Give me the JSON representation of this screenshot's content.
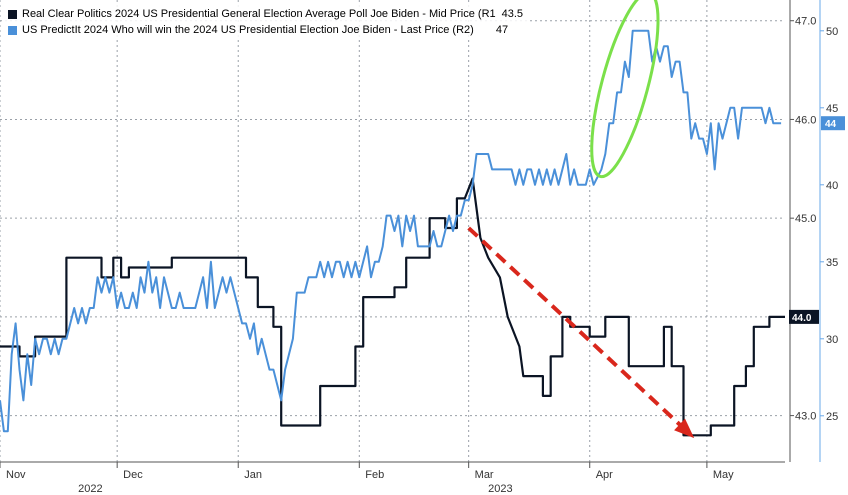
{
  "chart_data": {
    "type": "line",
    "legend": {
      "placement": "top-left",
      "entries": [
        {
          "label": "Real Clear Politics 2024 US Presidential General Election Average Poll Joe Biden - Mid Price (R1",
          "value": "43.5",
          "color": "#0b1424"
        },
        {
          "label": "US PredictIt 2024 Who will win the 2024 US Presidential Election Joe Biden - Last Price (R2)",
          "value": "47",
          "color": "#4a90d9"
        }
      ]
    },
    "x_axis": {
      "month_labels": [
        "Nov",
        "Dec",
        "Jan",
        "Feb",
        "Mar",
        "Apr",
        "May"
      ],
      "month_days": [
        0,
        30,
        61,
        92,
        120,
        151,
        181
      ],
      "year_labels": [
        {
          "label": "2022",
          "day": 20
        },
        {
          "label": "2023",
          "day": 125
        }
      ],
      "range_days": [
        0,
        201
      ]
    },
    "y_axis_r1": {
      "ticks": [
        43.0,
        44.0,
        45.0,
        46.0,
        47.0
      ],
      "tick_labels": [
        "43.0",
        "44.0",
        "45.0",
        "46.0",
        "47.0"
      ],
      "range": [
        42.53,
        47.21
      ]
    },
    "y_axis_r2": {
      "ticks": [
        25,
        30,
        35,
        40,
        45,
        50
      ],
      "tick_labels": [
        "25",
        "30",
        "35",
        "40",
        "45",
        "50"
      ],
      "range": [
        22,
        52
      ]
    },
    "grid": true,
    "series": [
      {
        "name": "Real Clear Politics 2024 US Presidential General Election Average Poll Joe Biden - Mid Price (R1",
        "axis": "r1",
        "color": "#0b1424",
        "last_value_label": "44.0",
        "points": [
          [
            0,
            43.7
          ],
          [
            5,
            43.7
          ],
          [
            5,
            43.6
          ],
          [
            9,
            43.6
          ],
          [
            9,
            43.8
          ],
          [
            17,
            43.8
          ],
          [
            17,
            44.6
          ],
          [
            26,
            44.6
          ],
          [
            26,
            44.4
          ],
          [
            29,
            44.4
          ],
          [
            29,
            44.6
          ],
          [
            31,
            44.6
          ],
          [
            31,
            44.4
          ],
          [
            33,
            44.4
          ],
          [
            33,
            44.5
          ],
          [
            44,
            44.5
          ],
          [
            44,
            44.6
          ],
          [
            46,
            44.6
          ],
          [
            46,
            44.6
          ],
          [
            63,
            44.6
          ],
          [
            63,
            44.4
          ],
          [
            66,
            44.4
          ],
          [
            66,
            44.1
          ],
          [
            70,
            44.1
          ],
          [
            70,
            43.9
          ],
          [
            72,
            43.9
          ],
          [
            72,
            42.9
          ],
          [
            82,
            42.9
          ],
          [
            82,
            43.3
          ],
          [
            89,
            43.3
          ],
          [
            89,
            43.3
          ],
          [
            91,
            43.3
          ],
          [
            91,
            43.7
          ],
          [
            93,
            43.7
          ],
          [
            93,
            44.2
          ],
          [
            101,
            44.2
          ],
          [
            101,
            44.3
          ],
          [
            104,
            44.3
          ],
          [
            104,
            44.6
          ],
          [
            110,
            44.6
          ],
          [
            110,
            45.0
          ],
          [
            114,
            45.0
          ],
          [
            114,
            44.9
          ],
          [
            117,
            44.9
          ],
          [
            117,
            45.2
          ],
          [
            119,
            45.2
          ],
          [
            121,
            45.4
          ],
          [
            123,
            44.8
          ],
          [
            125,
            44.6
          ],
          [
            128,
            44.4
          ],
          [
            130,
            44.0
          ],
          [
            133,
            43.7
          ],
          [
            134,
            43.4
          ],
          [
            139,
            43.4
          ],
          [
            139,
            43.2
          ],
          [
            141,
            43.2
          ],
          [
            141,
            43.6
          ],
          [
            144,
            43.6
          ],
          [
            144,
            44.0
          ],
          [
            146,
            44.0
          ],
          [
            146,
            43.9
          ],
          [
            151,
            43.9
          ],
          [
            151,
            43.8
          ],
          [
            155,
            43.8
          ],
          [
            155,
            44.0
          ],
          [
            161,
            44.0
          ],
          [
            161,
            43.5
          ],
          [
            170,
            43.5
          ],
          [
            170,
            43.9
          ],
          [
            172,
            43.9
          ],
          [
            172,
            43.5
          ],
          [
            175,
            43.5
          ],
          [
            175,
            42.8
          ],
          [
            182,
            42.8
          ],
          [
            182,
            42.9
          ],
          [
            184,
            42.9
          ],
          [
            184,
            42.9
          ],
          [
            188,
            42.9
          ],
          [
            188,
            43.3
          ],
          [
            191,
            43.3
          ],
          [
            191,
            43.5
          ],
          [
            193,
            43.5
          ],
          [
            193,
            43.9
          ],
          [
            197,
            43.9
          ],
          [
            197,
            44.0
          ],
          [
            201,
            44.0
          ]
        ]
      },
      {
        "name": "US PredictIt 2024 Who will win the 2024 US Presidential Election Joe Biden - Last Price (R2)",
        "axis": "r2",
        "color": "#4a90d9",
        "last_value_label": "44",
        "points": [
          [
            0,
            26
          ],
          [
            1,
            24
          ],
          [
            2,
            24
          ],
          [
            3,
            29
          ],
          [
            4,
            31
          ],
          [
            5,
            28
          ],
          [
            6,
            26
          ],
          [
            7,
            29
          ],
          [
            8,
            27
          ],
          [
            9,
            30
          ],
          [
            10,
            29
          ],
          [
            11,
            30
          ],
          [
            12,
            30
          ],
          [
            13,
            29
          ],
          [
            14,
            30
          ],
          [
            15,
            29
          ],
          [
            16,
            30
          ],
          [
            17,
            30
          ],
          [
            18,
            31
          ],
          [
            19,
            32
          ],
          [
            20,
            31
          ],
          [
            21,
            32
          ],
          [
            22,
            31
          ],
          [
            23,
            32
          ],
          [
            24,
            32
          ],
          [
            25,
            34
          ],
          [
            26,
            33
          ],
          [
            27,
            34
          ],
          [
            28,
            33
          ],
          [
            29,
            34
          ],
          [
            30,
            32
          ],
          [
            31,
            33
          ],
          [
            32,
            32
          ],
          [
            33,
            32
          ],
          [
            34,
            33
          ],
          [
            35,
            32
          ],
          [
            36,
            34
          ],
          [
            37,
            33
          ],
          [
            38,
            35
          ],
          [
            39,
            33
          ],
          [
            40,
            34
          ],
          [
            41,
            32
          ],
          [
            42,
            34
          ],
          [
            43,
            33
          ],
          [
            44,
            32
          ],
          [
            45,
            32
          ],
          [
            46,
            33
          ],
          [
            47,
            32
          ],
          [
            48,
            32
          ],
          [
            49,
            32
          ],
          [
            50,
            32
          ],
          [
            51,
            33
          ],
          [
            52,
            34
          ],
          [
            53,
            32
          ],
          [
            54,
            35
          ],
          [
            55,
            32
          ],
          [
            56,
            33
          ],
          [
            57,
            34
          ],
          [
            58,
            33
          ],
          [
            59,
            34
          ],
          [
            60,
            33
          ],
          [
            61,
            32
          ],
          [
            62,
            31
          ],
          [
            63,
            31
          ],
          [
            64,
            30
          ],
          [
            65,
            31
          ],
          [
            66,
            29
          ],
          [
            67,
            30
          ],
          [
            68,
            29
          ],
          [
            69,
            28
          ],
          [
            70,
            28
          ],
          [
            71,
            27
          ],
          [
            72,
            26
          ],
          [
            73,
            28
          ],
          [
            74,
            29
          ],
          [
            75,
            30
          ],
          [
            76,
            33
          ],
          [
            77,
            33
          ],
          [
            78,
            33
          ],
          [
            79,
            34
          ],
          [
            80,
            34
          ],
          [
            81,
            34
          ],
          [
            82,
            35
          ],
          [
            83,
            34
          ],
          [
            84,
            35
          ],
          [
            85,
            34
          ],
          [
            86,
            35
          ],
          [
            87,
            35
          ],
          [
            88,
            34
          ],
          [
            89,
            35
          ],
          [
            90,
            34
          ],
          [
            91,
            35
          ],
          [
            92,
            34
          ],
          [
            93,
            35
          ],
          [
            94,
            36
          ],
          [
            95,
            34
          ],
          [
            96,
            35
          ],
          [
            97,
            35
          ],
          [
            98,
            36
          ],
          [
            99,
            38
          ],
          [
            100,
            38
          ],
          [
            101,
            37
          ],
          [
            102,
            38
          ],
          [
            103,
            36
          ],
          [
            104,
            38
          ],
          [
            105,
            37
          ],
          [
            106,
            38
          ],
          [
            107,
            36
          ],
          [
            108,
            36
          ],
          [
            109,
            36
          ],
          [
            110,
            36
          ],
          [
            111,
            37
          ],
          [
            112,
            36
          ],
          [
            113,
            36
          ],
          [
            114,
            37
          ],
          [
            115,
            38
          ],
          [
            116,
            37
          ],
          [
            117,
            38
          ],
          [
            118,
            38
          ],
          [
            119,
            39
          ],
          [
            120,
            39
          ],
          [
            121,
            40
          ],
          [
            122,
            42
          ],
          [
            125,
            42
          ],
          [
            126,
            41
          ],
          [
            131,
            41
          ],
          [
            132,
            40
          ],
          [
            133,
            41
          ],
          [
            134,
            40
          ],
          [
            135,
            41
          ],
          [
            136,
            41
          ],
          [
            137,
            40
          ],
          [
            138,
            41
          ],
          [
            139,
            40
          ],
          [
            140,
            41
          ],
          [
            141,
            40
          ],
          [
            142,
            41
          ],
          [
            143,
            40
          ],
          [
            144,
            41
          ],
          [
            145,
            42
          ],
          [
            146,
            40
          ],
          [
            147,
            41
          ],
          [
            148,
            40
          ],
          [
            150,
            40
          ],
          [
            151,
            41
          ],
          [
            152,
            40
          ],
          [
            154,
            41
          ],
          [
            155,
            42
          ],
          [
            156,
            44
          ],
          [
            157,
            44
          ],
          [
            158,
            46
          ],
          [
            159,
            46
          ],
          [
            160,
            48
          ],
          [
            161,
            47
          ],
          [
            162,
            50
          ],
          [
            163,
            50
          ],
          [
            166,
            50
          ],
          [
            167,
            48
          ],
          [
            168,
            49
          ],
          [
            169,
            48
          ],
          [
            170,
            49
          ],
          [
            171,
            49
          ],
          [
            172,
            47
          ],
          [
            173,
            48
          ],
          [
            174,
            48
          ],
          [
            175,
            46
          ],
          [
            176,
            46
          ],
          [
            177,
            43
          ],
          [
            178,
            44
          ],
          [
            179,
            43
          ],
          [
            180,
            43
          ],
          [
            181,
            42
          ],
          [
            182,
            44
          ],
          [
            183,
            41
          ],
          [
            184,
            44
          ],
          [
            185,
            43
          ],
          [
            186,
            44
          ],
          [
            187,
            45
          ],
          [
            188,
            45
          ],
          [
            189,
            43
          ],
          [
            190,
            45
          ],
          [
            191,
            45
          ],
          [
            192,
            45
          ],
          [
            193,
            45
          ],
          [
            194,
            45
          ],
          [
            195,
            45
          ],
          [
            196,
            44
          ],
          [
            197,
            45
          ],
          [
            198,
            44
          ],
          [
            199,
            44
          ],
          [
            200,
            44
          ]
        ]
      }
    ],
    "annotations": [
      {
        "type": "ellipse",
        "color": "#7be04a",
        "center": [
          160,
          46.5
        ],
        "description": "highlight"
      },
      {
        "type": "arrow",
        "color": "#d9271c",
        "style": "dashed",
        "from": [
          120,
          44.9
        ],
        "to": [
          177,
          42.8
        ]
      }
    ]
  }
}
